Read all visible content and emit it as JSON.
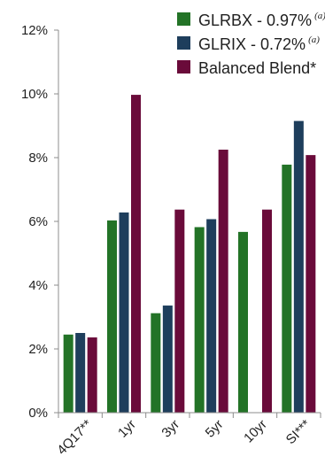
{
  "chart_data": {
    "type": "bar",
    "title": "",
    "xlabel": "",
    "ylabel": "",
    "categories": [
      "4Q17**",
      "1yr",
      "3yr",
      "5yr",
      "10yr",
      "SI***"
    ],
    "ylim": [
      0,
      12
    ],
    "yticks": [
      0,
      2,
      4,
      6,
      8,
      10,
      12
    ],
    "ytick_labels": [
      "0%",
      "2%",
      "4%",
      "6%",
      "8%",
      "10%",
      "12%"
    ],
    "grid": false,
    "legend_position": "top-right",
    "series": [
      {
        "name": "GLRBX - 0.97%",
        "note": "(a)",
        "color": "#237327",
        "values": [
          2.45,
          6.03,
          3.12,
          5.82,
          5.67,
          7.78
        ]
      },
      {
        "name": "GLRIX - 0.72%",
        "note": "(a)",
        "color": "#1e3e5c",
        "values": [
          2.5,
          6.28,
          3.36,
          6.07,
          null,
          9.15
        ]
      },
      {
        "name": "Balanced Blend*",
        "note": "",
        "color": "#6a0b3a",
        "values": [
          2.36,
          9.97,
          6.37,
          8.25,
          6.37,
          8.08
        ]
      }
    ]
  }
}
